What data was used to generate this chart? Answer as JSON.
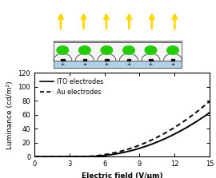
{
  "xlabel": "Electric field (V/μm)",
  "ylabel": "Luminance (cd/m²)",
  "xlim": [
    0,
    15
  ],
  "ylim": [
    0,
    120
  ],
  "xticks": [
    0,
    3,
    6,
    9,
    12,
    15
  ],
  "yticks": [
    0,
    20,
    40,
    60,
    80,
    100,
    120
  ],
  "legend_ITO": "ITO electrodes",
  "legend_Au": "Au electrodes",
  "ITO_params": {
    "threshold": 4.2,
    "scale": 0.48,
    "power": 2.05
  },
  "Au_params": {
    "threshold": 3.8,
    "scale": 0.56,
    "power": 2.05
  },
  "arrow_color": "#FFD700",
  "dot_color": "#22CC00",
  "dot_edge_color": "#007700",
  "panel_white": "#F5F5F5",
  "panel_blue": "#B0D0E8",
  "panel_border": "#444444",
  "n_electrodes": 6,
  "n_arrows": 6,
  "diagram_xmin": 1.5,
  "diagram_xmax": 8.5,
  "diag_xlim": [
    0,
    10
  ],
  "diag_ylim": [
    0,
    5
  ]
}
